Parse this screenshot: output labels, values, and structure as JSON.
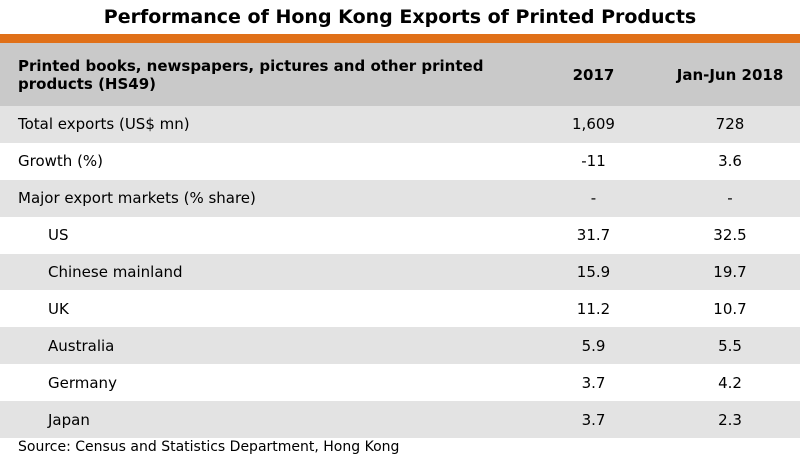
{
  "title": "Performance of Hong Kong Exports of Printed Products",
  "colors": {
    "accent": "#e07018",
    "header_bg": "#c9c9c9",
    "shade_row": "#e3e3e3"
  },
  "chart_data": {
    "type": "table",
    "title": "Performance of Hong Kong Exports of Printed Products",
    "columns": [
      "Printed books, newspapers, pictures and other printed products (HS49)",
      "2017",
      "Jan-Jun 2018"
    ],
    "rows": [
      {
        "label": "Total exports (US$ mn)",
        "v2017": "1,609",
        "v2018": "728",
        "indent": false
      },
      {
        "label": "Growth (%)",
        "v2017": "-11",
        "v2018": "3.6",
        "indent": false
      },
      {
        "label": "Major export markets (% share)",
        "v2017": "-",
        "v2018": "-",
        "indent": false
      },
      {
        "label": "US",
        "v2017": "31.7",
        "v2018": "32.5",
        "indent": true
      },
      {
        "label": "Chinese mainland",
        "v2017": "15.9",
        "v2018": "19.7",
        "indent": true
      },
      {
        "label": "UK",
        "v2017": "11.2",
        "v2018": "10.7",
        "indent": true
      },
      {
        "label": "Australia",
        "v2017": "5.9",
        "v2018": "5.5",
        "indent": true
      },
      {
        "label": "Germany",
        "v2017": "3.7",
        "v2018": "4.2",
        "indent": true
      },
      {
        "label": "Japan",
        "v2017": "3.7",
        "v2018": "2.3",
        "indent": true
      }
    ]
  },
  "source": "Source: Census and Statistics Department, Hong Kong"
}
